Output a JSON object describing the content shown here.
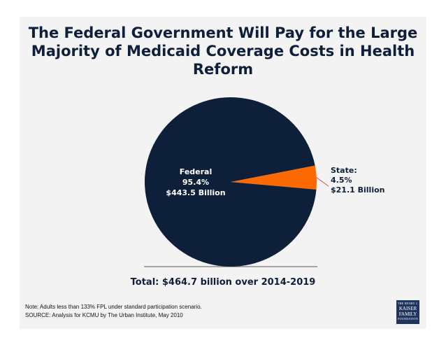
{
  "chart_data": {
    "type": "pie",
    "title": "The Federal Government Will Pay for the Large Majority of Medicaid Coverage Costs in Health Reform",
    "slices": [
      {
        "name": "Federal",
        "percent_label": "95.4%",
        "amount_label": "$443.5 Billion",
        "value": 443.5,
        "color": "#0e1f3a"
      },
      {
        "name": "State:",
        "percent_label": "4.5%",
        "amount_label": "$21.1 Billion",
        "value": 21.1,
        "color": "#ff6a00"
      }
    ],
    "total_label": "Total: $464.7 billion over 2014-2019"
  },
  "notes": {
    "note": "Note: Adults less than 133% FPL under standard participation scenario.",
    "source": "SOURCE: Analysis for KCMU by The Urban Institute, May 2010"
  },
  "logo": {
    "line1": "THE HENRY J.",
    "line2": "KAISER",
    "line3": "FAMILY",
    "line4": "FOUNDATION"
  }
}
